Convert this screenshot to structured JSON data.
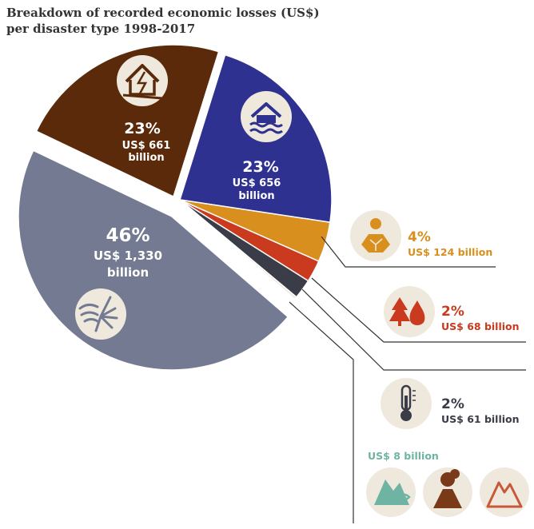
{
  "title": [
    "Breakdown of recorded economic losses (US$)",
    "per disaster type 1998-2017"
  ],
  "colors": {
    "earthquake": "#5a2a0a",
    "flood": "#2e3190",
    "drought": "#d98f1e",
    "wildfire": "#c93a1f",
    "extreme_temperature": "#3a3c47",
    "storm": "#737a91",
    "icon_bg": "#efe9dd",
    "mass_movement_teal": "#6fb3a3"
  },
  "chart_data": {
    "type": "pie",
    "title": "Breakdown of recorded economic losses (US$) per disaster type 1998-2017",
    "slices": [
      {
        "key": "earthquake",
        "icon": "house-crack-icon",
        "percent": "23%",
        "amount": "US$ 661",
        "unit": "billion",
        "value": 661
      },
      {
        "key": "flood",
        "icon": "flooded-house-icon",
        "percent": "23%",
        "amount": "US$ 656",
        "unit": "billion",
        "value": 656
      },
      {
        "key": "drought",
        "icon": "sun-cracked-earth-icon",
        "percent": "4%",
        "amount": "US$ 124 billion",
        "value": 124
      },
      {
        "key": "wildfire",
        "icon": "wildfire-icon",
        "percent": "2%",
        "amount": "US$ 68 billion",
        "value": 68
      },
      {
        "key": "extreme_temperature",
        "icon": "thermometer-icon",
        "percent": "2%",
        "amount": "US$ 61 billion",
        "value": 61
      },
      {
        "key": "mass_movement",
        "icons": [
          "landslide-icon",
          "volcano-icon",
          "mountain-icon"
        ],
        "amount": "US$ 8 billion",
        "value": 8
      },
      {
        "key": "storm",
        "icon": "storm-wind-icon",
        "percent": "46%",
        "amount": "US$ 1,330",
        "unit": "billion",
        "value": 1330
      }
    ]
  }
}
